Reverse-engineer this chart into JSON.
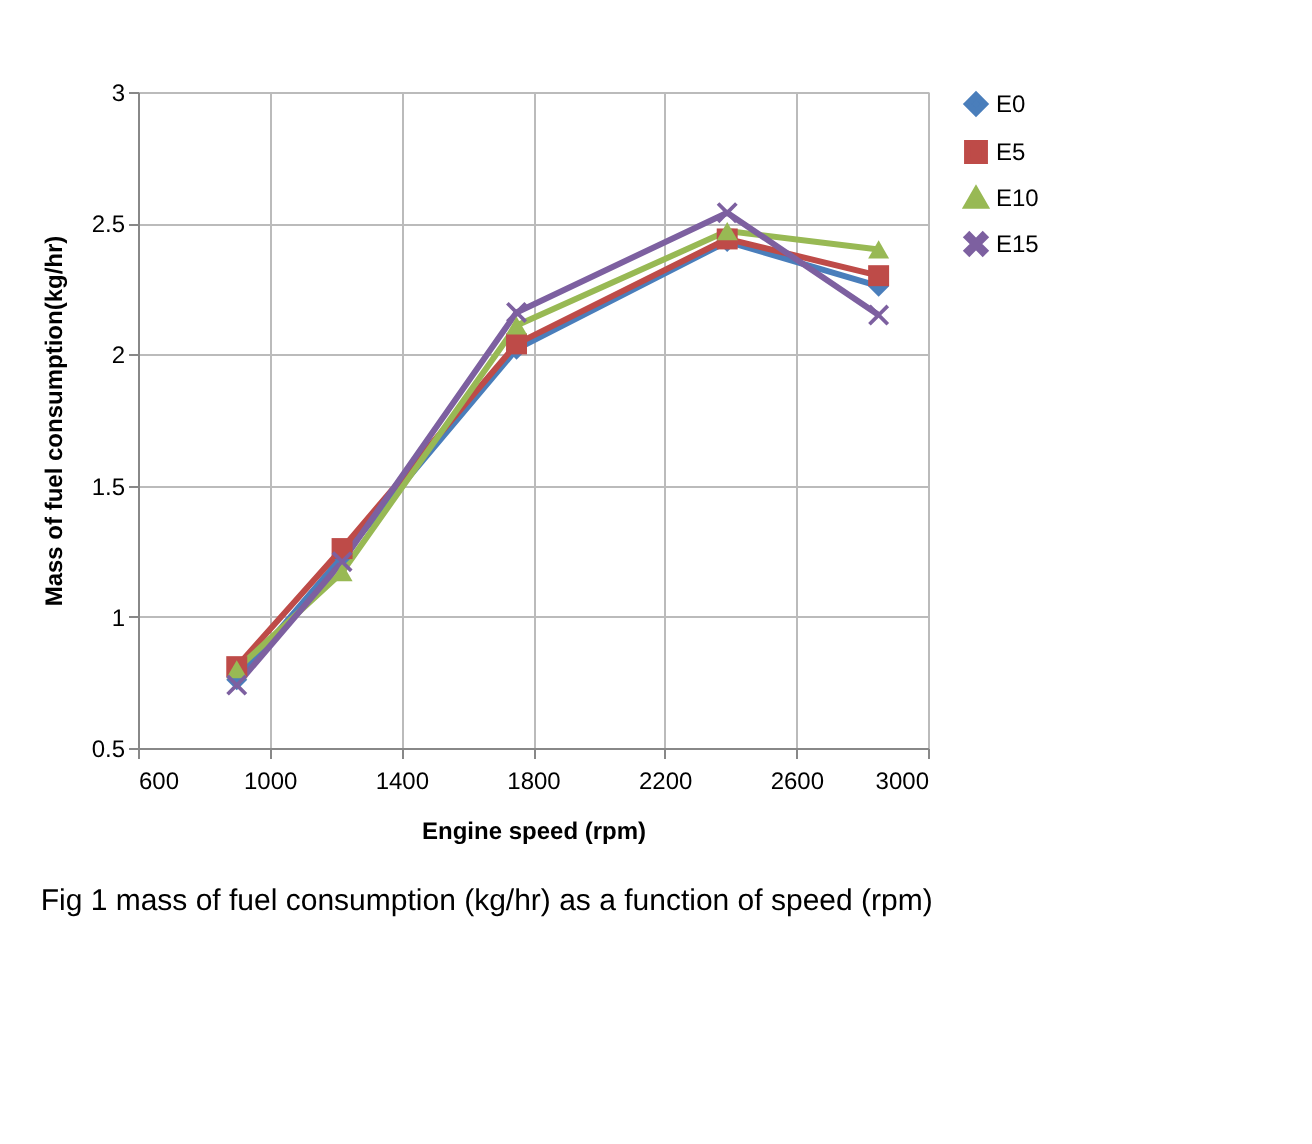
{
  "chart_data": {
    "type": "line",
    "xlabel": "Engine speed (rpm)",
    "ylabel": "Mass of fuel consumption(kg/hr)",
    "x": [
      900,
      1220,
      1750,
      2390,
      2850
    ],
    "series": [
      {
        "name": "E0",
        "color": "#4a7ebb",
        "marker": "diamond",
        "values": [
          0.76,
          1.23,
          2.02,
          2.43,
          2.26
        ]
      },
      {
        "name": "E5",
        "color": "#be4b48",
        "marker": "square",
        "values": [
          0.81,
          1.26,
          2.04,
          2.44,
          2.3
        ]
      },
      {
        "name": "E10",
        "color": "#98b954",
        "marker": "triangle",
        "values": [
          0.8,
          1.17,
          2.11,
          2.47,
          2.4
        ]
      },
      {
        "name": "E15",
        "color": "#7d60a0",
        "marker": "cross",
        "values": [
          0.74,
          1.21,
          2.16,
          2.54,
          2.15
        ]
      }
    ],
    "xlim": [
      600,
      3000
    ],
    "xticks": [
      600,
      1000,
      1400,
      1800,
      2200,
      2600,
      3000
    ],
    "ylim": [
      0.5,
      3
    ],
    "yticks": [
      0.5,
      1,
      1.5,
      2,
      2.5,
      3
    ],
    "grid": true,
    "legend": "right",
    "line_style": "solid",
    "annotations": [
      "Fig 1 mass of fuel consumption (kg/hr) as a function of speed (rpm)"
    ]
  }
}
